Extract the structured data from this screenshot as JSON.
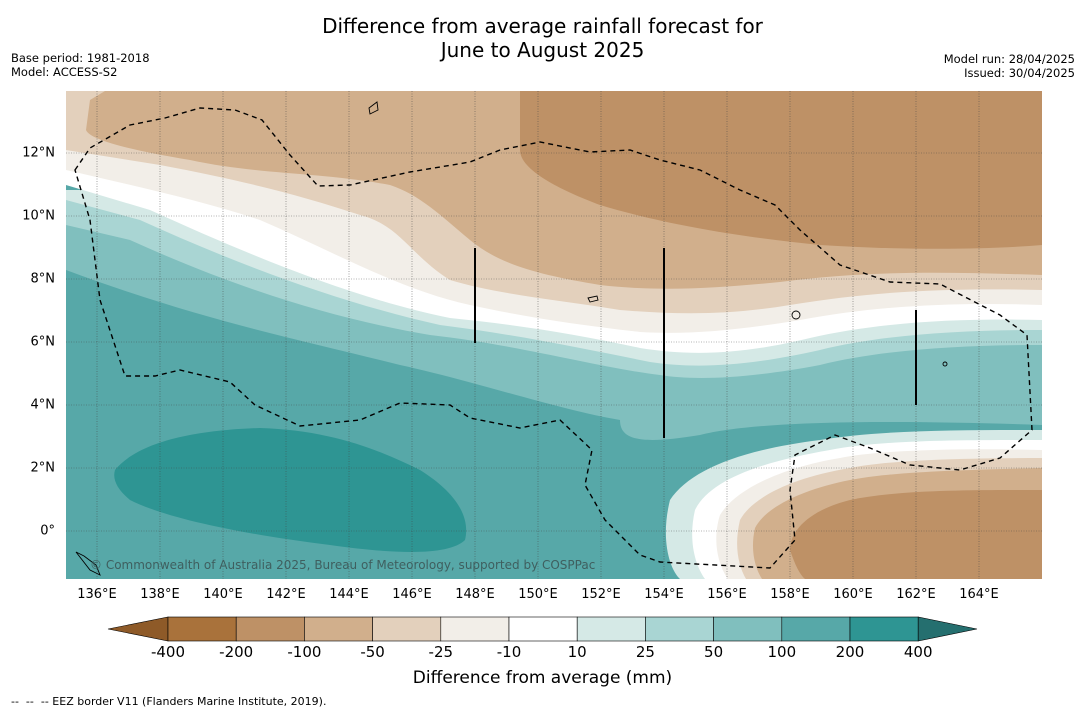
{
  "title_line1": "Difference from average rainfall forecast for",
  "title_line2": "June to August 2025",
  "meta_left": {
    "base_period": "Base period: 1981-2018",
    "model": "Model: ACCESS-S2"
  },
  "meta_right": {
    "model_run": "Model run: 28/04/2025",
    "issued": "Issued: 30/04/2025"
  },
  "copyright": "© Commonwealth of Australia 2025, Bureau of Meteorology, supported by COSPPac",
  "footer": "--  --  -- EEZ border V11 (Flanders Marine Institute, 2019).",
  "colorbar": {
    "title": "Difference from average (mm)",
    "labels": [
      "-400",
      "-200",
      "-100",
      "-50",
      "-25",
      "-10",
      "10",
      "25",
      "50",
      "100",
      "200",
      "400"
    ],
    "colors": [
      "#a9723b",
      "#be9166",
      "#d1af8c",
      "#e3d0bc",
      "#f2eee8",
      "#ffffff",
      "#d5e9e6",
      "#a9d5d3",
      "#80bfbe",
      "#57a8a8",
      "#2e9593",
      "#256f6f"
    ]
  },
  "map": {
    "lon_ticks": [
      "136°E",
      "138°E",
      "140°E",
      "142°E",
      "144°E",
      "146°E",
      "148°E",
      "150°E",
      "152°E",
      "154°E",
      "156°E",
      "158°E",
      "160°E",
      "162°E",
      "164°E"
    ],
    "lat_ticks": [
      "12°N",
      "10°N",
      "8°N",
      "6°N",
      "4°N",
      "2°N",
      "0°"
    ]
  }
}
